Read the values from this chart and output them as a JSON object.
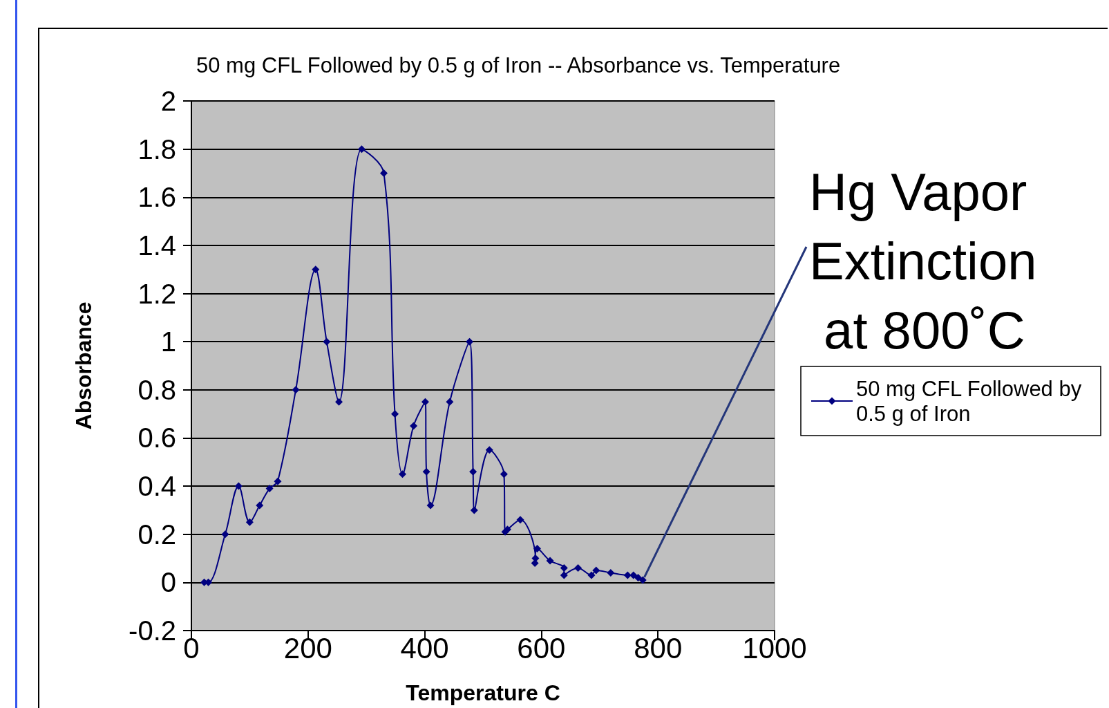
{
  "chart_data": {
    "type": "line",
    "title": "50 mg CFL Followed by 0.5 g of Iron -- Absorbance vs. Temperature",
    "xlabel": "Temperature C",
    "ylabel": "Absorbance",
    "xlim": [
      0,
      1000
    ],
    "xticks": [
      0,
      200,
      400,
      600,
      800,
      1000
    ],
    "ylim": [
      -0.2,
      2
    ],
    "yticks": [
      -0.2,
      0,
      0.2,
      0.4,
      0.6,
      0.8,
      1,
      1.2,
      1.4,
      1.6,
      1.8,
      2
    ],
    "grid": "y",
    "legend": "right",
    "marker": "diamond",
    "line_style": "solid",
    "annotations": [
      {
        "text": "Hg Vapor Extinction at 800˚C",
        "x": 772,
        "y": 0.01
      }
    ],
    "series": [
      {
        "name": "50 mg CFL Followed by 0.5 g of Iron",
        "color": "#000080",
        "x": [
          22,
          29,
          58,
          81,
          100,
          117,
          134,
          148,
          179,
          213,
          232,
          253,
          292,
          330,
          349,
          362,
          381,
          401,
          403,
          410,
          443,
          477,
          483,
          485,
          511,
          536,
          538,
          542,
          564,
          590,
          589,
          593,
          615,
          639,
          639,
          663,
          686,
          694,
          719,
          748,
          758,
          766,
          774
        ],
        "values": [
          0,
          0,
          0.2,
          0.4,
          0.25,
          0.32,
          0.39,
          0.42,
          0.8,
          1.3,
          1.0,
          0.75,
          1.8,
          1.7,
          0.7,
          0.45,
          0.65,
          0.75,
          0.46,
          0.32,
          0.75,
          1.0,
          0.46,
          0.3,
          0.55,
          0.45,
          0.21,
          0.22,
          0.26,
          0.1,
          0.08,
          0.14,
          0.09,
          0.06,
          0.03,
          0.06,
          0.03,
          0.05,
          0.04,
          0.03,
          0.03,
          0.02,
          0.01
        ]
      }
    ]
  }
}
